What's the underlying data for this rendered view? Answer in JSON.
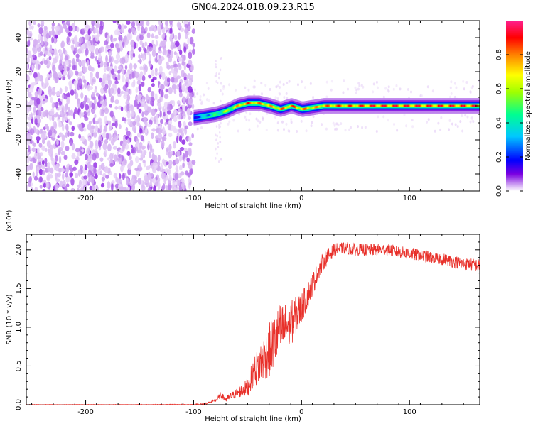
{
  "title": "GN04.2024.018.09.23.R15",
  "colors": {
    "snr_line": "#e8302a",
    "colormap": [
      "#ffffff",
      "#cfa6f0",
      "#7a00e0",
      "#0000ff",
      "#00c8ff",
      "#00ff90",
      "#a0ff00",
      "#ffff00",
      "#ff8000",
      "#ff0000",
      "#ff2090"
    ]
  },
  "chart_data": [
    {
      "type": "heatmap",
      "xlabel": "Height of straight line (km)",
      "ylabel": "Frequency (Hz)",
      "xlim": [
        -255,
        165
      ],
      "ylim": [
        -50,
        50
      ],
      "x_ticks": [
        -200,
        -100,
        0,
        100
      ],
      "y_ticks": [
        -40,
        -20,
        0,
        20,
        40
      ],
      "colorbar": {
        "label": "Normalized spectral amplitude",
        "range": [
          0,
          1
        ],
        "ticks": [
          "0.0",
          "0.2",
          "0.4",
          "0.6",
          "0.8"
        ]
      },
      "noise_region_x": [
        -255,
        -100
      ],
      "ridge": {
        "description_values": true,
        "x": [
          -100,
          -90,
          -80,
          -70,
          -60,
          -50,
          -40,
          -30,
          -20,
          -10,
          0,
          10,
          20,
          30,
          40,
          50,
          60,
          80,
          100,
          120,
          140,
          165
        ],
        "freq": [
          -7,
          -6,
          -5,
          -3,
          0,
          1.5,
          1.5,
          0,
          -2,
          0,
          -2,
          -1,
          0,
          0,
          0,
          0,
          0,
          0,
          0,
          0,
          0,
          0
        ],
        "amplitude": [
          0.35,
          0.45,
          0.55,
          0.65,
          0.8,
          0.9,
          0.85,
          0.8,
          0.85,
          0.9,
          0.85,
          0.8,
          0.85,
          0.9,
          0.9,
          0.9,
          0.95,
          0.95,
          0.95,
          0.95,
          0.95,
          0.95
        ]
      }
    },
    {
      "type": "line",
      "xlabel": "Height of straight line (km)",
      "ylabel": "SNR (10 * v/v)",
      "scale_label": "(x10⁴)",
      "xlim": [
        -255,
        165
      ],
      "ylim": [
        0,
        2.2
      ],
      "x_ticks": [
        -200,
        -100,
        0,
        100
      ],
      "y_ticks": [
        "0.0",
        "0.5",
        "1.0",
        "1.5",
        "2.0"
      ],
      "y_tick_values": [
        0,
        0.5,
        1.0,
        1.5,
        2.0
      ],
      "series": [
        {
          "x": [
            -255,
            -200,
            -150,
            -100,
            -90,
            -80,
            -75,
            -70,
            -60,
            -50,
            -45,
            -40,
            -30,
            -20,
            -10,
            0,
            10,
            20,
            30,
            40,
            50,
            60,
            70,
            80,
            90,
            100,
            110,
            120,
            130,
            140,
            150,
            165
          ],
          "values": [
            0.0,
            0.0,
            0.0,
            0.0,
            0.01,
            0.05,
            0.12,
            0.07,
            0.15,
            0.22,
            0.4,
            0.5,
            0.7,
            0.95,
            1.05,
            1.25,
            1.55,
            1.85,
            2.0,
            2.02,
            2.0,
            2.0,
            2.0,
            2.0,
            1.97,
            1.95,
            1.93,
            1.9,
            1.88,
            1.85,
            1.82,
            1.8
          ],
          "noise": [
            0.005,
            0.005,
            0.005,
            0.01,
            0.01,
            0.02,
            0.04,
            0.04,
            0.06,
            0.12,
            0.18,
            0.25,
            0.35,
            0.35,
            0.3,
            0.2,
            0.15,
            0.12,
            0.08,
            0.08,
            0.08,
            0.08,
            0.08,
            0.08,
            0.08,
            0.08,
            0.08,
            0.08,
            0.08,
            0.08,
            0.08,
            0.08
          ]
        }
      ]
    }
  ]
}
